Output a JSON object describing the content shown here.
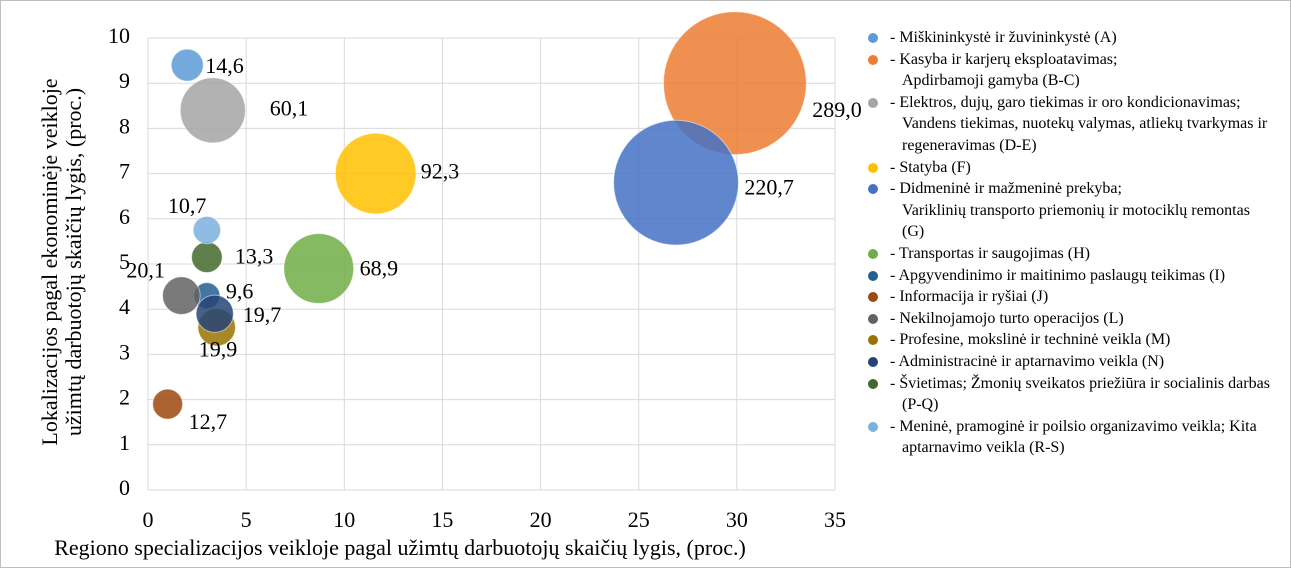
{
  "chart_data": {
    "type": "bubble",
    "x_label": "Regiono specializacijos veikloje pagal užimtų darbuotojų skaičių lygis, (proc.)",
    "y_label": "Lokalizacijos pagal ekonominėje veikloje užimtų darbuotojų skaičių lygis, (proc.)",
    "xlim": [
      0,
      35
    ],
    "xticks": [
      0,
      5,
      10,
      15,
      20,
      25,
      30,
      35
    ],
    "ylim": [
      0,
      10
    ],
    "yticks": [
      0,
      1,
      2,
      3,
      4,
      5,
      6,
      7,
      8,
      9,
      10
    ],
    "grid": true,
    "legend": "right",
    "series": [
      {
        "name": "- Miškininkystė ir žuvininkystė (A)",
        "color": "#5b9bd5",
        "x": [
          2.0
        ],
        "values": [
          9.4
        ],
        "sizes": [
          14.6
        ],
        "value_labels": [
          "14,6"
        ]
      },
      {
        "name": "- Kasyba ir karjerų eksploatavimas;\nApdirbamoji gamyba (B-C)",
        "color": "#ed7d31",
        "x": [
          29.9
        ],
        "values": [
          9.0
        ],
        "sizes": [
          289.0
        ],
        "value_labels": [
          "289,0"
        ]
      },
      {
        "name": "- Elektros, dujų, garo tiekimas ir oro kondicionavimas; Vandens tiekimas, nuotekų valymas, atliekų tvarkymas ir regeneravimas (D-E)",
        "color": "#a5a5a5",
        "x": [
          3.3
        ],
        "values": [
          8.4
        ],
        "sizes": [
          60.1
        ],
        "value_labels": [
          "60,1"
        ]
      },
      {
        "name": "- Statyba (F)",
        "color": "#ffc000",
        "x": [
          11.6
        ],
        "values": [
          7.0
        ],
        "sizes": [
          92.3
        ],
        "value_labels": [
          "92,3"
        ]
      },
      {
        "name": "- Didmeninė ir mažmeninė prekyba;\nVariklinių transporto priemonių ir motociklų remontas (G)",
        "color": "#4472c4",
        "x": [
          26.9
        ],
        "values": [
          6.8
        ],
        "sizes": [
          220.7
        ],
        "value_labels": [
          "220,7"
        ]
      },
      {
        "name": "- Transportas ir saugojimas (H)",
        "color": "#70ad47",
        "x": [
          8.7
        ],
        "values": [
          4.9
        ],
        "sizes": [
          68.9
        ],
        "value_labels": [
          "68,9"
        ]
      },
      {
        "name": "- Apgyvendinimo ir maitinimo paslaugų teikimas (I)",
        "color": "#255e91",
        "x": [
          3.0
        ],
        "values": [
          4.3
        ],
        "sizes": [
          9.6
        ],
        "value_labels": [
          "9,6"
        ]
      },
      {
        "name": "- Informacija ir ryšiai (J)",
        "color": "#9e480e",
        "x": [
          1.0
        ],
        "values": [
          1.9
        ],
        "sizes": [
          12.7
        ],
        "value_labels": [
          "12,7"
        ]
      },
      {
        "name": "- Nekilnojamojo turto operacijos (L)",
        "color": "#636363",
        "x": [
          1.7
        ],
        "values": [
          4.3
        ],
        "sizes": [
          20.1
        ],
        "value_labels": [
          "20,1"
        ]
      },
      {
        "name": "- Profesine, mokslinė ir techninė veikla (M)",
        "color": "#997300",
        "x": [
          3.5
        ],
        "values": [
          3.6
        ],
        "sizes": [
          19.9
        ],
        "value_labels": [
          "19,9"
        ]
      },
      {
        "name": "- Administracinė ir aptarnavimo veikla (N)",
        "color": "#264478",
        "x": [
          3.4
        ],
        "values": [
          3.9
        ],
        "sizes": [
          19.7
        ],
        "value_labels": [
          "19,7"
        ]
      },
      {
        "name": "- Švietimas; Žmonių sveikatos priežiūra ir socialinis darbas (P-Q)",
        "color": "#43682b",
        "x": [
          3.0
        ],
        "values": [
          5.15
        ],
        "sizes": [
          13.3
        ],
        "value_labels": [
          "13,3"
        ]
      },
      {
        "name": "- Meninė, pramoginė ir poilsio organizavimo veikla; Kita aptarnavimo veikla (R-S)",
        "color": "#7cafdd",
        "x": [
          3.0
        ],
        "values": [
          5.75
        ],
        "sizes": [
          10.7
        ],
        "value_labels": [
          "10,7"
        ]
      }
    ]
  }
}
